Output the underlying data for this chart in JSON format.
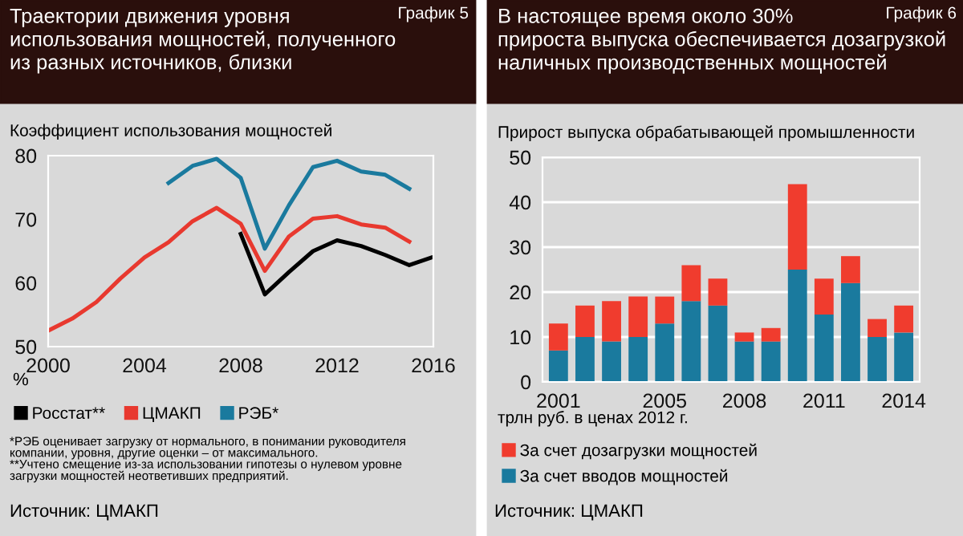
{
  "chart_data": [
    {
      "type": "line",
      "title": "Траектории движения уровня\nиспользования мощностей, полученного\nиз разных источников, близки",
      "ylabel": "Коэффициент использования мощностей",
      "annotations": [
        "График 5",
        "%",
        "*РЭБ оценивает загрузку от нормального, в понимании руководителя\nкомпании, уровня, другие оценки – от максимального.\n**Учтено смещение из-за использовании гипотезы о нулевом уровне\nзагрузки мощностей неответивших предприятий.",
        "Источник: ЦМАКП"
      ],
      "xlim": [
        2000,
        2016
      ],
      "xticks": [
        2000,
        2004,
        2008,
        2012,
        2016
      ],
      "ylim": [
        50,
        80
      ],
      "yticks": [
        50,
        60,
        70,
        80
      ],
      "grid": false,
      "legend": "bottom",
      "series": [
        {
          "name": "Росстат**",
          "color": "#000000",
          "x": [
            2008,
            2009,
            2010,
            2011,
            2012,
            2013,
            2014,
            2015,
            2016
          ],
          "values": [
            67.7,
            58.2,
            61.7,
            65.0,
            66.7,
            65.8,
            64.4,
            62.8,
            64.1
          ]
        },
        {
          "name": "ЦМАКП",
          "color": "#e8392f",
          "x": [
            2000,
            2001,
            2002,
            2003,
            2004,
            2005,
            2006,
            2007,
            2008,
            2009,
            2010,
            2011,
            2012,
            2013,
            2014,
            2015
          ],
          "values": [
            52.5,
            54.4,
            57.0,
            60.7,
            64.0,
            66.4,
            69.7,
            71.8,
            69.3,
            61.9,
            67.3,
            70.1,
            70.5,
            69.2,
            68.7,
            66.5
          ]
        },
        {
          "name": "РЭБ*",
          "color": "#1a7a9e",
          "x": [
            2005,
            2006,
            2007,
            2008,
            2009,
            2010,
            2011,
            2012,
            2013,
            2014,
            2015
          ],
          "values": [
            75.7,
            78.4,
            79.5,
            76.5,
            65.4,
            72.2,
            78.2,
            79.2,
            77.5,
            77.0,
            74.8
          ]
        }
      ]
    },
    {
      "type": "bar",
      "stacked": true,
      "title": "В настоящее время около 30%\nприроста выпуска обеспечивается дозагрузкой\nналичных производственных мощностей",
      "ylabel": "Прирост выпуска обрабатывающей промышленности",
      "annotations": [
        "График 6",
        "трлн руб. в ценах 2012 г.",
        "Источник: ЦМАКП"
      ],
      "categories": [
        "2001",
        null,
        null,
        null,
        "2005",
        null,
        null,
        "2008",
        null,
        null,
        "2011",
        null,
        null,
        "2014"
      ],
      "ylim": [
        0,
        50
      ],
      "yticks": [
        0,
        10,
        20,
        30,
        40,
        50
      ],
      "grid": "y",
      "legend": "bottom",
      "series": [
        {
          "name": "За счет вводов мощностей",
          "color": "#1a7a9e",
          "values": [
            7,
            10,
            9,
            10,
            13,
            18,
            17,
            9,
            9,
            25,
            15,
            22,
            10,
            11
          ]
        },
        {
          "name": "За счет дозагрузки мощностей",
          "color": "#f03c2e",
          "values": [
            6,
            7,
            9,
            9,
            6,
            8,
            6,
            2,
            3,
            19,
            8,
            6,
            4,
            6
          ]
        }
      ]
    }
  ]
}
